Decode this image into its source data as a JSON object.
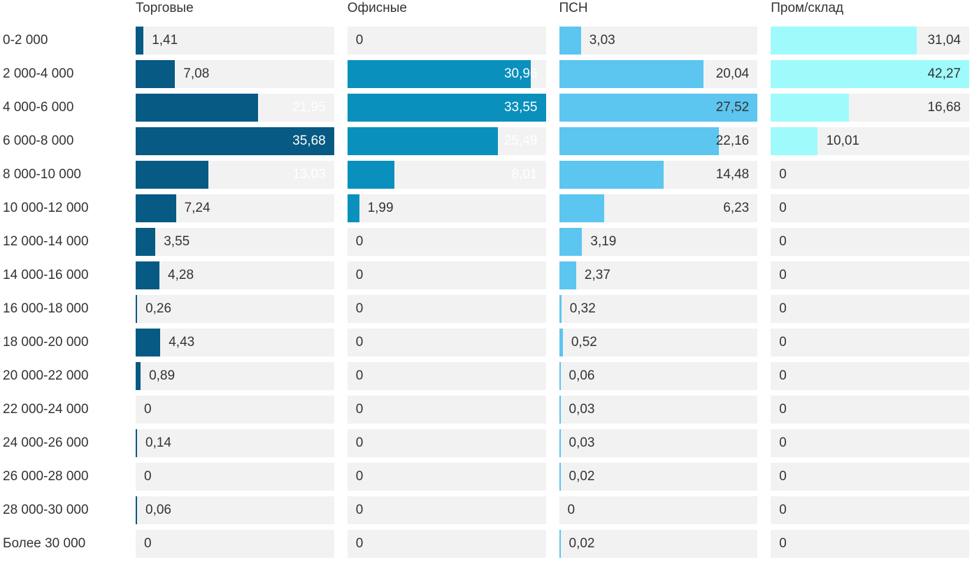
{
  "chart_data": {
    "type": "bar",
    "orientation": "horizontal",
    "title": "",
    "xlabel": "",
    "ylabel": "",
    "legend_position": "column-headers-top",
    "grid": false,
    "scale": "each column scaled independently to its own max value",
    "decimal_separator": ",",
    "track_color": "#f2f2f2",
    "text_color": "#333333",
    "categories": [
      "0-2 000",
      "2 000-4 000",
      "4 000-6 000",
      "6 000-8 000",
      "8 000-10 000",
      "10 000-12 000",
      "12 000-14 000",
      "14 000-16 000",
      "16 000-18 000",
      "18 000-20 000",
      "20 000-22 000",
      "22 000-24 000",
      "24 000-26 000",
      "26 000-28 000",
      "28 000-30 000",
      "Более 30 000"
    ],
    "series": [
      {
        "name": "Торговые",
        "color": "#065a83",
        "inside_label_color": "#ffffff",
        "values": [
          1.41,
          7.08,
          21.95,
          35.68,
          13.03,
          7.24,
          3.55,
          4.28,
          0.26,
          4.43,
          0.89,
          0,
          0.14,
          0,
          0.06,
          0
        ],
        "display_values": [
          "1,41",
          "7,08",
          "21,95",
          "35,68",
          "13,03",
          "7,24",
          "3,55",
          "4,28",
          "0,26",
          "4,43",
          "0,89",
          "0",
          "0,14",
          "0",
          "0,06",
          "0"
        ]
      },
      {
        "name": "Офисные",
        "color": "#0a90bd",
        "inside_label_color": "#ffffff",
        "values": [
          0,
          30.96,
          33.55,
          25.49,
          8.01,
          1.99,
          0,
          0,
          0,
          0,
          0,
          0,
          0,
          0,
          0,
          0
        ],
        "display_values": [
          "0",
          "30,96",
          "33,55",
          "25,49",
          "8,01",
          "1,99",
          "0",
          "0",
          "0",
          "0",
          "0",
          "0",
          "0",
          "0",
          "0",
          "0"
        ]
      },
      {
        "name": "ПСН",
        "color": "#5cc5f0",
        "inside_label_color": "#333333",
        "values": [
          3.03,
          20.04,
          27.52,
          22.16,
          14.48,
          6.23,
          3.19,
          2.37,
          0.32,
          0.52,
          0.06,
          0.03,
          0.03,
          0.02,
          0,
          0.02
        ],
        "display_values": [
          "3,03",
          "20,04",
          "27,52",
          "22,16",
          "14,48",
          "6,23",
          "3,19",
          "2,37",
          "0,32",
          "0,52",
          "0,06",
          "0,03",
          "0,03",
          "0,02",
          "0",
          "0,02"
        ]
      },
      {
        "name": "Пром/склад",
        "color": "#9ffbfb",
        "inside_label_color": "#333333",
        "values": [
          31.04,
          42.27,
          16.68,
          10.01,
          0,
          0,
          0,
          0,
          0,
          0,
          0,
          0,
          0,
          0,
          0,
          0
        ],
        "display_values": [
          "31,04",
          "42,27",
          "16,68",
          "10,01",
          "0",
          "0",
          "0",
          "0",
          "0",
          "0",
          "0",
          "0",
          "0",
          "0",
          "0",
          "0"
        ]
      }
    ]
  }
}
